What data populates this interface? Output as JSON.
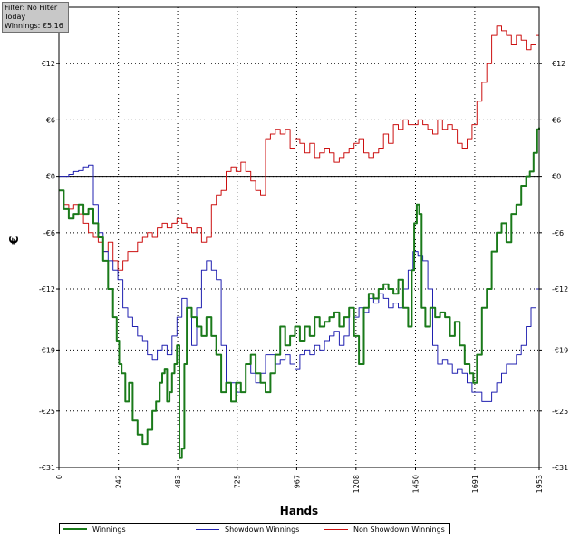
{
  "filter_box": {
    "lines": [
      "Filter: No Filter",
      "Today",
      "Winnings: €5.16"
    ]
  },
  "colors": {
    "winnings": "#1a7a1a",
    "showdown": "#2020b0",
    "non_showdown": "#cc1010",
    "grid": "#000000",
    "zero_line": "#000000"
  },
  "chart_data": {
    "type": "line",
    "xlabel": "Hands",
    "ylabel": "€",
    "xlim": [
      0,
      1953
    ],
    "ylim": [
      -31,
      18
    ],
    "x_ticks": [
      0,
      242,
      483,
      725,
      967,
      1208,
      1450,
      1691,
      1953
    ],
    "x_tick_labels": [
      "0",
      "242",
      "483",
      "725",
      "967",
      "1208",
      "1450",
      "1691",
      "1953"
    ],
    "y_ticks": [
      12,
      6,
      0,
      -6,
      -12,
      -18.5,
      -25,
      -31
    ],
    "y_tick_labels": [
      "€12",
      "€6",
      "€0",
      "-€6",
      "-€12",
      "-€19",
      "-€25",
      "-€31"
    ],
    "grid": true,
    "legend_position": "bottom",
    "series": [
      {
        "name": "Winnings",
        "key": "winnings",
        "x": [
          0,
          20,
          40,
          60,
          80,
          100,
          120,
          140,
          160,
          180,
          200,
          220,
          235,
          245,
          255,
          270,
          285,
          300,
          320,
          340,
          360,
          380,
          395,
          410,
          420,
          430,
          440,
          450,
          460,
          470,
          480,
          490,
          500,
          510,
          520,
          540,
          560,
          580,
          600,
          620,
          640,
          660,
          680,
          700,
          720,
          740,
          760,
          780,
          800,
          820,
          840,
          860,
          880,
          900,
          920,
          940,
          960,
          980,
          1000,
          1020,
          1040,
          1060,
          1080,
          1100,
          1120,
          1140,
          1160,
          1180,
          1200,
          1220,
          1240,
          1260,
          1280,
          1300,
          1320,
          1340,
          1360,
          1380,
          1400,
          1420,
          1435,
          1445,
          1455,
          1465,
          1475,
          1490,
          1510,
          1530,
          1550,
          1570,
          1590,
          1610,
          1630,
          1650,
          1670,
          1685,
          1700,
          1720,
          1740,
          1760,
          1780,
          1800,
          1820,
          1840,
          1860,
          1880,
          1900,
          1915,
          1930,
          1945,
          1953
        ],
        "y": [
          -1.5,
          -3.5,
          -4.5,
          -4,
          -3,
          -4,
          -3.5,
          -5,
          -6.5,
          -9,
          -12,
          -15,
          -17.5,
          -20,
          -21,
          -24,
          -22,
          -26,
          -27.5,
          -28.5,
          -27,
          -25,
          -24,
          -22,
          -21,
          -20.5,
          -24,
          -23,
          -21,
          -20,
          -18,
          -30,
          -29,
          -20,
          -14,
          -15,
          -16,
          -17,
          -15,
          -17,
          -19,
          -23,
          -22,
          -24,
          -22,
          -23,
          -20,
          -19,
          -21,
          -22,
          -23,
          -21,
          -19,
          -16,
          -18,
          -17,
          -16,
          -17.5,
          -16,
          -17,
          -15,
          -16,
          -15.5,
          -15,
          -14.5,
          -16,
          -15,
          -14,
          -17,
          -20,
          -14,
          -12.5,
          -13,
          -12,
          -11.5,
          -12,
          -12.5,
          -11,
          -14,
          -16,
          -10,
          -5,
          -3,
          -4,
          -14,
          -16,
          -14,
          -15,
          -14.5,
          -15,
          -17,
          -15.5,
          -18,
          -20,
          -21,
          -22,
          -19,
          -14,
          -12,
          -8,
          -6,
          -5,
          -7,
          -4,
          -3,
          -1,
          0,
          0.5,
          2.5,
          5,
          5.2
        ]
      },
      {
        "name": "Showdown Winnings",
        "key": "showdown",
        "x": [
          0,
          20,
          40,
          60,
          80,
          100,
          120,
          140,
          160,
          180,
          200,
          220,
          240,
          260,
          280,
          300,
          320,
          340,
          360,
          380,
          400,
          420,
          440,
          460,
          480,
          500,
          520,
          540,
          560,
          580,
          600,
          620,
          640,
          660,
          680,
          700,
          720,
          740,
          760,
          780,
          800,
          820,
          840,
          860,
          880,
          900,
          920,
          940,
          960,
          980,
          1000,
          1020,
          1040,
          1060,
          1080,
          1100,
          1120,
          1140,
          1160,
          1180,
          1200,
          1220,
          1240,
          1260,
          1280,
          1300,
          1320,
          1340,
          1360,
          1380,
          1400,
          1420,
          1440,
          1460,
          1480,
          1500,
          1520,
          1540,
          1560,
          1580,
          1600,
          1620,
          1640,
          1660,
          1680,
          1700,
          1720,
          1740,
          1760,
          1780,
          1800,
          1820,
          1840,
          1860,
          1880,
          1900,
          1920,
          1940,
          1953
        ],
        "y": [
          0,
          0,
          0.2,
          0.5,
          0.6,
          1,
          1.2,
          -3,
          -6,
          -8,
          -9,
          -10,
          -11,
          -14,
          -15,
          -16,
          -17,
          -17.5,
          -19,
          -19.5,
          -18.5,
          -18,
          -19,
          -17,
          -15,
          -13,
          -14,
          -18,
          -14,
          -10,
          -9,
          -10,
          -11,
          -18,
          -22,
          -22,
          -23,
          -23,
          -20,
          -21,
          -22,
          -21,
          -19,
          -19,
          -20,
          -19.5,
          -19,
          -20,
          -20.5,
          -19,
          -18.5,
          -19,
          -18,
          -18.5,
          -17.5,
          -17,
          -16.5,
          -18,
          -17,
          -14,
          -15,
          -14,
          -14.5,
          -13,
          -13.5,
          -12.5,
          -13,
          -14,
          -13.5,
          -14,
          -12,
          -10,
          -8,
          -8.5,
          -9,
          -12,
          -18,
          -20,
          -19.5,
          -20,
          -21,
          -20.5,
          -21,
          -22,
          -23,
          -23,
          -24,
          -24,
          -23,
          -22,
          -21,
          -20,
          -20,
          -19,
          -18,
          -16,
          -14,
          -12,
          -11.5
        ]
      },
      {
        "name": "Non Showdown Winnings",
        "key": "non_showdown",
        "x": [
          0,
          20,
          40,
          60,
          80,
          100,
          120,
          140,
          160,
          180,
          200,
          220,
          240,
          260,
          280,
          300,
          320,
          340,
          360,
          380,
          400,
          420,
          440,
          460,
          480,
          500,
          520,
          540,
          560,
          580,
          600,
          620,
          640,
          660,
          680,
          700,
          720,
          740,
          760,
          780,
          800,
          820,
          840,
          860,
          880,
          900,
          920,
          940,
          960,
          980,
          1000,
          1020,
          1040,
          1060,
          1080,
          1100,
          1120,
          1140,
          1160,
          1180,
          1200,
          1220,
          1240,
          1260,
          1280,
          1300,
          1320,
          1340,
          1360,
          1380,
          1400,
          1420,
          1440,
          1460,
          1480,
          1500,
          1520,
          1540,
          1560,
          1580,
          1600,
          1620,
          1640,
          1660,
          1680,
          1700,
          1720,
          1740,
          1760,
          1780,
          1800,
          1820,
          1840,
          1860,
          1880,
          1900,
          1920,
          1940,
          1953
        ],
        "y": [
          -1.5,
          -3,
          -3.5,
          -3,
          -4,
          -5,
          -6,
          -6.5,
          -7,
          -8,
          -7,
          -9,
          -10,
          -9,
          -8,
          -8,
          -7,
          -6.5,
          -6,
          -6.5,
          -5.5,
          -5,
          -5.5,
          -5,
          -4.5,
          -5,
          -5.5,
          -6,
          -5.5,
          -7,
          -6.5,
          -3,
          -2,
          -1.5,
          0.5,
          1,
          0.5,
          1.5,
          0.5,
          -0.5,
          -1.5,
          -2,
          4,
          4.5,
          5,
          4.5,
          5,
          3,
          4,
          3.5,
          2.5,
          3.5,
          2,
          2.5,
          3,
          2.5,
          1.5,
          2,
          2.5,
          3,
          3.5,
          4,
          2.5,
          2,
          2.5,
          3,
          4.5,
          3.5,
          5.5,
          5,
          6,
          5.5,
          5.5,
          6,
          5.5,
          5,
          4.5,
          6,
          5,
          5.5,
          5,
          3.5,
          3,
          4,
          5.5,
          8,
          10,
          12,
          15,
          16,
          15.5,
          15,
          14,
          15,
          14.5,
          13.5,
          14,
          15,
          17
        ]
      }
    ]
  }
}
